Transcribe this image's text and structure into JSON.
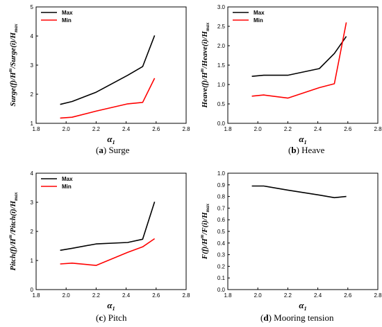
{
  "chart_data": [
    {
      "type": "line",
      "caption_label": "(a)",
      "caption_text": "Surge",
      "xlabel": "α",
      "xlabel_sub": "1",
      "ylabel": "Surge(f)/H",
      "ylabel_sup": "m",
      "ylabel_tail": "/Surge(i)/H",
      "ylabel_sub": "max",
      "xlim": [
        1.8,
        2.8
      ],
      "xticks": [
        "1.8",
        "2.0",
        "2.2",
        "2.4",
        "2.6",
        "2.8"
      ],
      "ylim": [
        1,
        5
      ],
      "yticks": [
        "1",
        "2",
        "3",
        "4",
        "5"
      ],
      "legend_position": "top-left",
      "series": [
        {
          "name": "Max",
          "color": "#000000",
          "x": [
            1.96,
            2.04,
            2.2,
            2.41,
            2.51,
            2.59
          ],
          "y": [
            1.65,
            1.75,
            2.07,
            2.65,
            2.95,
            4.02
          ]
        },
        {
          "name": "Min",
          "color": "#ff0000",
          "x": [
            1.96,
            2.04,
            2.2,
            2.41,
            2.51,
            2.59
          ],
          "y": [
            1.18,
            1.21,
            1.42,
            1.67,
            1.72,
            2.55
          ]
        }
      ]
    },
    {
      "type": "line",
      "caption_label": "(b)",
      "caption_text": "Heave",
      "xlabel": "α",
      "xlabel_sub": "1",
      "ylabel": "Heave(f)/H",
      "ylabel_sup": "m",
      "ylabel_tail": "/Heave(i)/H",
      "ylabel_sub": "max",
      "xlim": [
        1.8,
        2.8
      ],
      "xticks": [
        "1.8",
        "2.0",
        "2.2",
        "2.4",
        "2.6",
        "2.8"
      ],
      "ylim": [
        0,
        3
      ],
      "yticks": [
        "0.0",
        "0.5",
        "1.0",
        "1.5",
        "2.0",
        "2.5",
        "3.0"
      ],
      "legend_position": "top-left",
      "series": [
        {
          "name": "Max",
          "color": "#000000",
          "x": [
            1.96,
            2.04,
            2.2,
            2.41,
            2.51,
            2.59
          ],
          "y": [
            1.21,
            1.24,
            1.24,
            1.41,
            1.8,
            2.24
          ]
        },
        {
          "name": "Min",
          "color": "#ff0000",
          "x": [
            1.96,
            2.04,
            2.2,
            2.41,
            2.51,
            2.59
          ],
          "y": [
            0.7,
            0.73,
            0.65,
            0.92,
            1.02,
            2.6
          ]
        }
      ]
    },
    {
      "type": "line",
      "caption_label": "(c)",
      "caption_text": "Pitch",
      "xlabel": "α",
      "xlabel_sub": "1",
      "ylabel": "Pitch(f)/H",
      "ylabel_sup": "m",
      "ylabel_tail": "/Pitch(i)/H",
      "ylabel_sub": "max",
      "xlim": [
        1.8,
        2.8
      ],
      "xticks": [
        "1.8",
        "2.0",
        "2.2",
        "2.4",
        "2.6",
        "2.8"
      ],
      "ylim": [
        0,
        4
      ],
      "yticks": [
        "0",
        "1",
        "2",
        "3",
        "4"
      ],
      "legend_position": "top-left",
      "series": [
        {
          "name": "Max",
          "color": "#000000",
          "x": [
            1.96,
            2.04,
            2.2,
            2.41,
            2.51,
            2.59
          ],
          "y": [
            1.35,
            1.42,
            1.57,
            1.62,
            1.73,
            3.02
          ]
        },
        {
          "name": "Min",
          "color": "#ff0000",
          "x": [
            1.96,
            2.04,
            2.2,
            2.41,
            2.51,
            2.59
          ],
          "y": [
            0.88,
            0.91,
            0.83,
            1.28,
            1.47,
            1.75
          ]
        }
      ]
    },
    {
      "type": "line",
      "caption_label": "(d)",
      "caption_text": "Mooring tension",
      "xlabel": "α",
      "xlabel_sub": "1",
      "ylabel": "F(f)/H",
      "ylabel_sup": "m",
      "ylabel_tail": "/F(i)/H",
      "ylabel_sub": "max",
      "xlim": [
        1.8,
        2.8
      ],
      "xticks": [
        "1.8",
        "2.0",
        "2.2",
        "2.4",
        "2.6",
        "2.8"
      ],
      "ylim": [
        0,
        1
      ],
      "yticks": [
        "0.0",
        "0.1",
        "0.2",
        "0.3",
        "0.4",
        "0.5",
        "0.6",
        "0.7",
        "0.8",
        "0.9",
        "1.0"
      ],
      "legend_position": "none",
      "series": [
        {
          "name": "",
          "color": "#000000",
          "x": [
            1.96,
            2.04,
            2.2,
            2.41,
            2.51,
            2.59
          ],
          "y": [
            0.89,
            0.89,
            0.855,
            0.812,
            0.79,
            0.8
          ]
        }
      ]
    }
  ]
}
